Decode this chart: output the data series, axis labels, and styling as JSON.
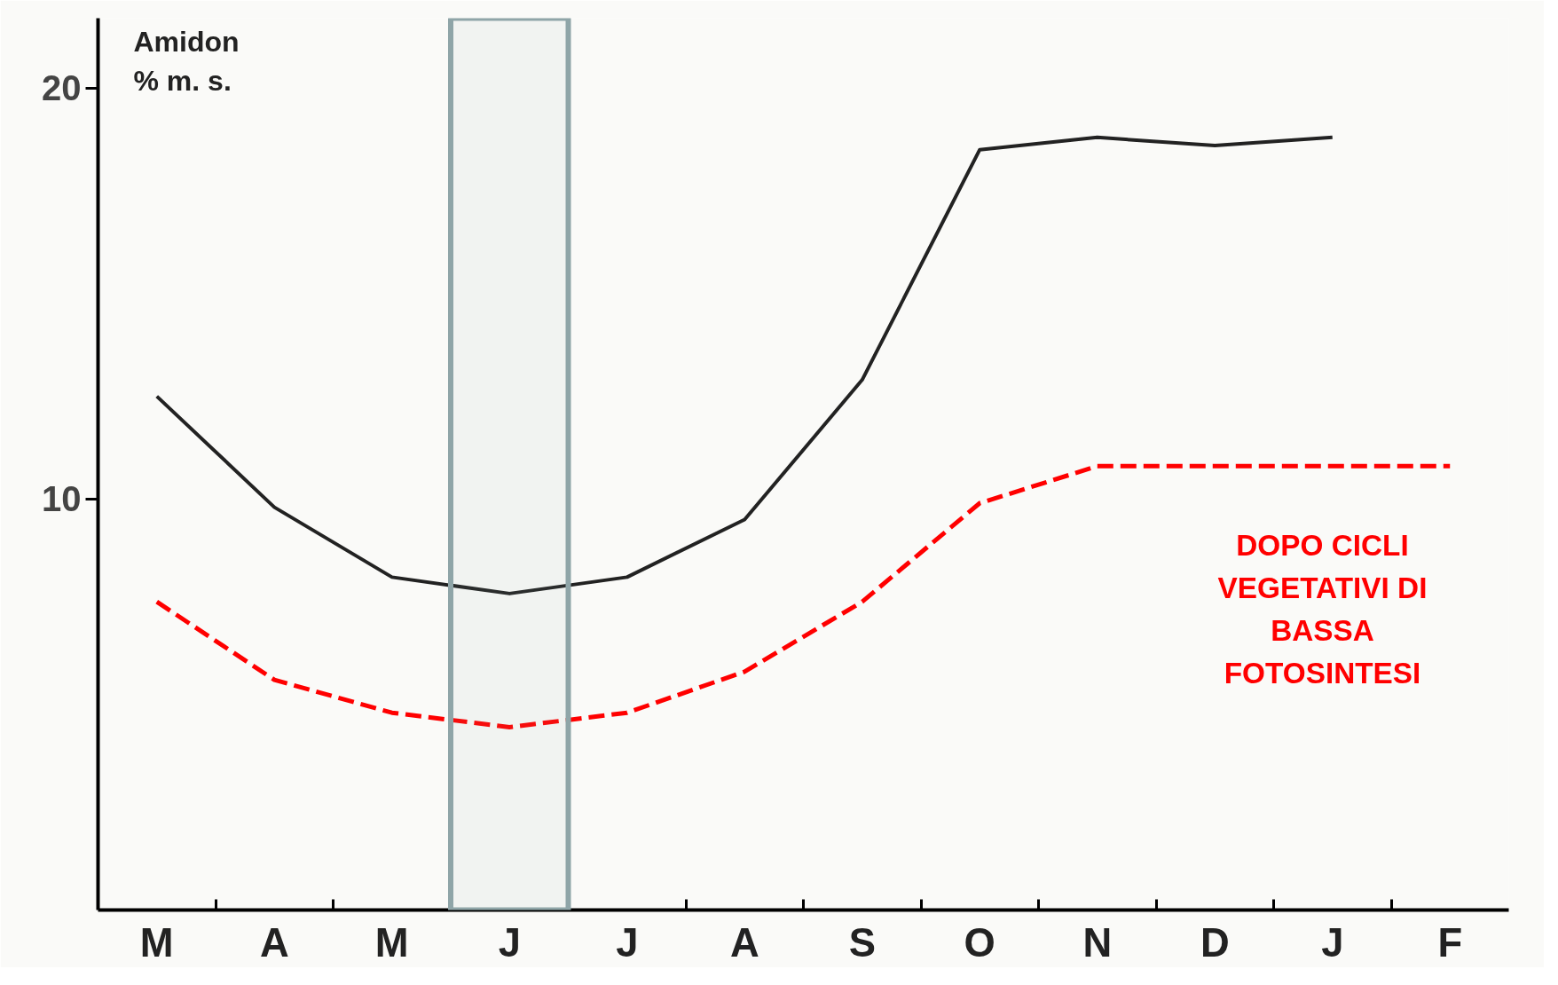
{
  "chart_data": {
    "type": "line",
    "ylabel": "Amidon\n% m. s.",
    "categories": [
      "M",
      "A",
      "M",
      "J",
      "J",
      "A",
      "S",
      "O",
      "N",
      "D",
      "J",
      "F"
    ],
    "ylim": [
      0,
      21.7
    ],
    "yticks": [
      10,
      20
    ],
    "grid": false,
    "series": [
      {
        "color": "#222222",
        "line_style": "solid",
        "values": [
          12.5,
          9.8,
          8.1,
          7.7,
          8.1,
          9.5,
          12.9,
          18.5,
          18.8,
          18.6,
          18.8,
          null
        ]
      },
      {
        "color": "#ff0000",
        "line_style": "dashed",
        "values": [
          7.5,
          5.6,
          4.8,
          4.45,
          4.8,
          5.8,
          7.5,
          9.9,
          10.8,
          10.8,
          10.8,
          10.8
        ]
      }
    ],
    "bands": [
      {
        "axis": "x",
        "from": "J",
        "to": "J",
        "color": "#8fa5a8"
      }
    ],
    "annotations": [
      "DOPO CICLI\nVEGETATIVI DI\nBASSA\nFOTOSINTESI"
    ]
  }
}
